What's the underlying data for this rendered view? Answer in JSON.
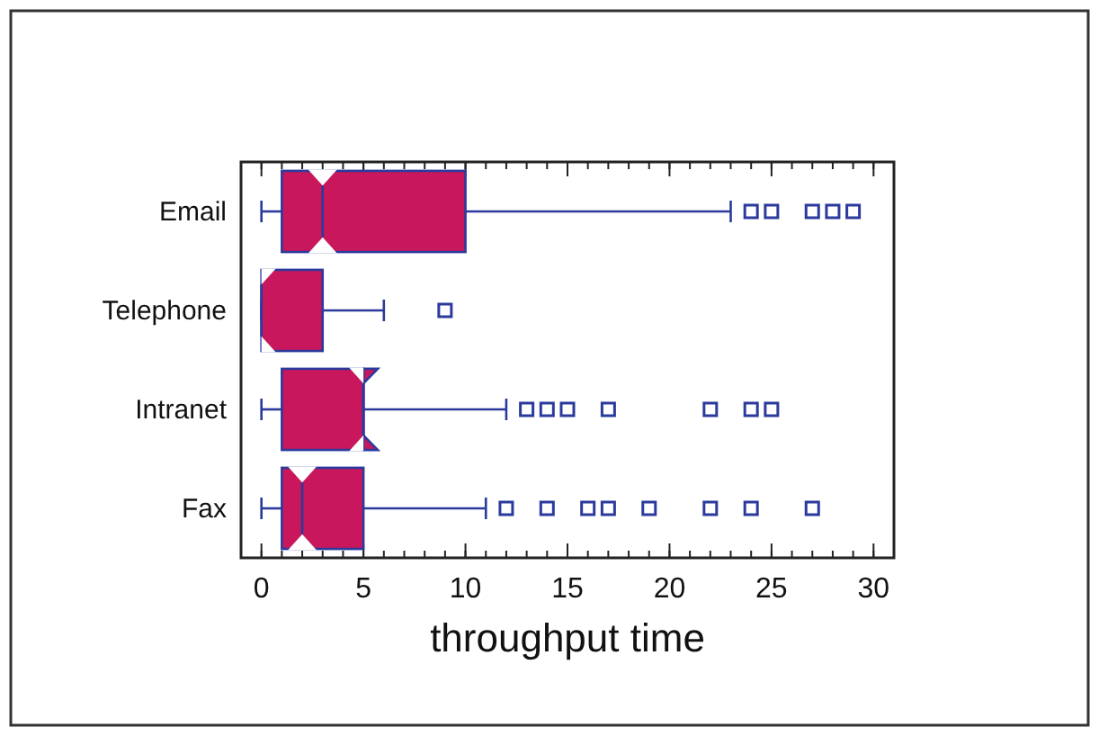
{
  "chart_data": {
    "type": "box",
    "orientation": "horizontal",
    "xlabel": "throughput time",
    "categories": [
      "Email",
      "Telephone",
      "Intranet",
      "Fax"
    ],
    "color": "#c8175d",
    "boxes": [
      {
        "low": 0,
        "q1": 1,
        "median": 3,
        "q3": 10,
        "high": 23,
        "outliers": [
          24,
          25,
          27,
          28,
          29
        ]
      },
      {
        "low": 0,
        "q1": 0,
        "median": 0,
        "q3": 3,
        "high": 6,
        "outliers": [
          9
        ]
      },
      {
        "low": 0,
        "q1": 1,
        "median": 5,
        "q3": 5,
        "high": 12,
        "outliers": [
          13,
          14,
          15,
          17,
          22,
          24,
          25
        ]
      },
      {
        "low": 0,
        "q1": 1,
        "median": 2,
        "q3": 5,
        "high": 11,
        "outliers": [
          12,
          14,
          16,
          17,
          19,
          22,
          24,
          27
        ]
      }
    ],
    "xlim": [
      -1,
      31
    ],
    "xticks": [
      0,
      5,
      10,
      15,
      20,
      25,
      30
    ],
    "grid": false
  }
}
